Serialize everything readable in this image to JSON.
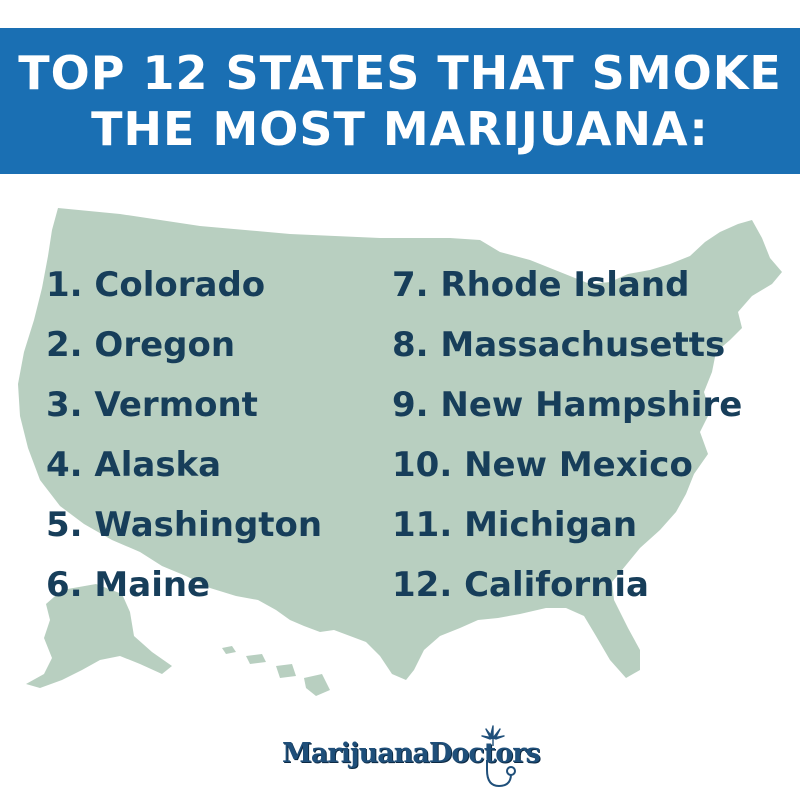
{
  "header": {
    "title_line1": "TOP 12 STATES THAT SMOKE",
    "title_line2": "THE MOST MARIJUANA:"
  },
  "colors": {
    "banner": "#1a6fb3",
    "map": "#b8cfc0",
    "list_text": "#173e5a",
    "logo": "#1f4f7a"
  },
  "list": {
    "left": [
      "1. Colorado",
      "2. Oregon",
      "3. Vermont",
      "4. Alaska",
      "5. Washington",
      "6. Maine"
    ],
    "right": [
      "7. Rhode Island",
      "8. Massachusetts",
      "9. New Hampshire",
      "10. New Mexico",
      "11. Michigan",
      "12. California"
    ]
  },
  "logo": {
    "text": "MarijuanaDoctors",
    "icons": [
      "cannabis-leaf-icon",
      "stethoscope-icon"
    ]
  }
}
